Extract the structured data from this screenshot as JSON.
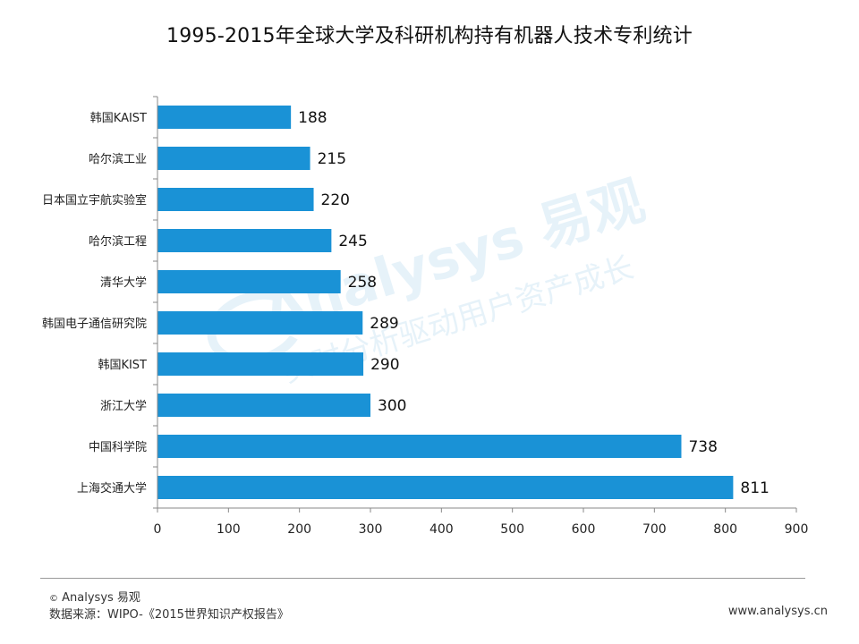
{
  "chart_data": {
    "type": "bar",
    "orientation": "horizontal",
    "title": "1995-2015年全球大学及科研机构持有机器人技术专利统计",
    "categories": [
      "韩国KAIST",
      "哈尔滨工业",
      "日本国立宇航实验室",
      "哈尔滨工程",
      "清华大学",
      "韩国电子通信研究院",
      "韩国KIST",
      "浙江大学",
      "中国科学院",
      "上海交通大学"
    ],
    "values": [
      188,
      215,
      220,
      245,
      258,
      289,
      290,
      300,
      738,
      811
    ],
    "xlim": [
      0,
      900
    ],
    "xticks": [
      0,
      100,
      200,
      300,
      400,
      500,
      600,
      700,
      800,
      900
    ],
    "xlabel": "",
    "ylabel": "",
    "grid": false,
    "bar_color": "#1a92d6"
  },
  "footer": {
    "copyright_symbol": "©",
    "copyright_text": "Analysys 易观",
    "source": "数据来源：WIPO-《2015世界知识产权报告》",
    "website": "www.analysys.cn"
  },
  "watermark": {
    "brand": "Analysys 易观",
    "slogan": "实时分析驱动用户资产成长"
  }
}
